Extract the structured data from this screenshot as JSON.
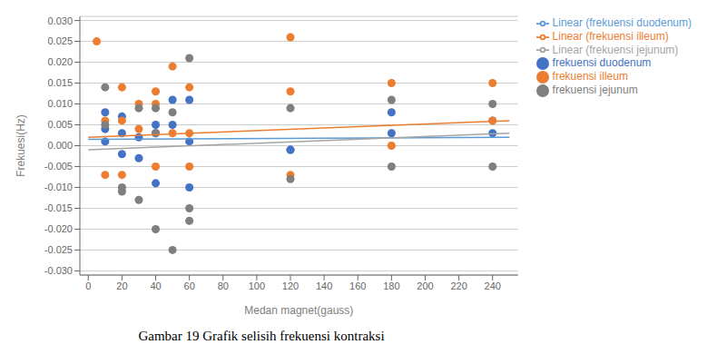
{
  "chart_data": {
    "type": "scatter",
    "title": "Gambar 19  Grafik selisih frekuensi kontraksi",
    "xlabel": "Medan magnet(gauss)",
    "ylabel": "Frekuesi(Hz)",
    "xlim": [
      -5,
      255
    ],
    "ylim": [
      -0.031,
      0.031
    ],
    "xticks": [
      0,
      20,
      40,
      60,
      80,
      100,
      120,
      140,
      160,
      180,
      200,
      220,
      240
    ],
    "yticks": [
      {
        "value": -0.03,
        "label": "-0.030"
      },
      -0.025,
      {
        "value": -0.02,
        "label": "-0.020"
      },
      -0.015,
      {
        "value": -0.01,
        "label": "-0.010"
      },
      -0.005,
      {
        "value": 0,
        "label": "0.000"
      },
      0.005,
      {
        "value": 0.01,
        "label": "0.010"
      },
      0.015,
      {
        "value": 0.02,
        "label": "0.020"
      },
      0.025,
      {
        "value": 0.03,
        "label": "0.030"
      }
    ],
    "grid": "y",
    "legend": "right",
    "series": [
      {
        "name": "frekuensi duodenum",
        "type": "scatter",
        "marker": "circle",
        "color": "#4472c4",
        "x": [
          10,
          10,
          10,
          20,
          20,
          20,
          30,
          30,
          40,
          40,
          40,
          50,
          50,
          60,
          60,
          60,
          120,
          120,
          180,
          180,
          240,
          240
        ],
        "values": [
          0.008,
          0.004,
          0.001,
          0.007,
          0.003,
          -0.002,
          0.002,
          -0.003,
          0.005,
          0.003,
          -0.009,
          0.011,
          0.005,
          0.011,
          0.001,
          -0.01,
          -0.001,
          -0.001,
          0.008,
          0.003,
          0.006,
          0.003
        ]
      },
      {
        "name": "frekuensi illeum",
        "type": "scatter",
        "marker": "circle",
        "color": "#ed7d31",
        "x": [
          5,
          10,
          10,
          20,
          20,
          20,
          30,
          30,
          40,
          40,
          40,
          50,
          50,
          60,
          60,
          60,
          120,
          120,
          120,
          180,
          180,
          240,
          240
        ],
        "values": [
          0.025,
          0.006,
          -0.007,
          0.014,
          0.006,
          -0.007,
          0.01,
          0.004,
          0.013,
          0.01,
          -0.005,
          0.019,
          0.003,
          0.014,
          0.003,
          -0.005,
          0.026,
          0.013,
          -0.007,
          0.015,
          0.0,
          0.015,
          0.006
        ]
      },
      {
        "name": "frekuensi jejunum",
        "type": "scatter",
        "marker": "circle",
        "color": "#7f7f7f",
        "x": [
          10,
          10,
          20,
          20,
          30,
          30,
          40,
          40,
          40,
          50,
          50,
          60,
          60,
          60,
          120,
          120,
          180,
          180,
          240,
          240
        ],
        "values": [
          0.014,
          0.005,
          -0.01,
          -0.011,
          0.009,
          -0.013,
          0.009,
          -0.02,
          0.003,
          0.008,
          -0.025,
          0.021,
          -0.015,
          -0.018,
          0.009,
          -0.008,
          0.011,
          -0.005,
          0.01,
          -0.005
        ]
      },
      {
        "name": "Linear (frekuensi duodenum)",
        "type": "line",
        "line_style": "solid",
        "color": "#5b9bd5",
        "x": [
          0,
          250
        ],
        "values": [
          0.0015,
          0.002
        ]
      },
      {
        "name": "Linear (frekuensi illeum)",
        "type": "line",
        "line_style": "solid",
        "color": "#ed7d31",
        "x": [
          0,
          250
        ],
        "values": [
          0.002,
          0.006
        ]
      },
      {
        "name": "Linear (frekuensi jejunum)",
        "type": "line",
        "line_style": "solid",
        "color": "#a5a5a5",
        "x": [
          0,
          250
        ],
        "values": [
          -0.001,
          0.003
        ]
      }
    ]
  }
}
